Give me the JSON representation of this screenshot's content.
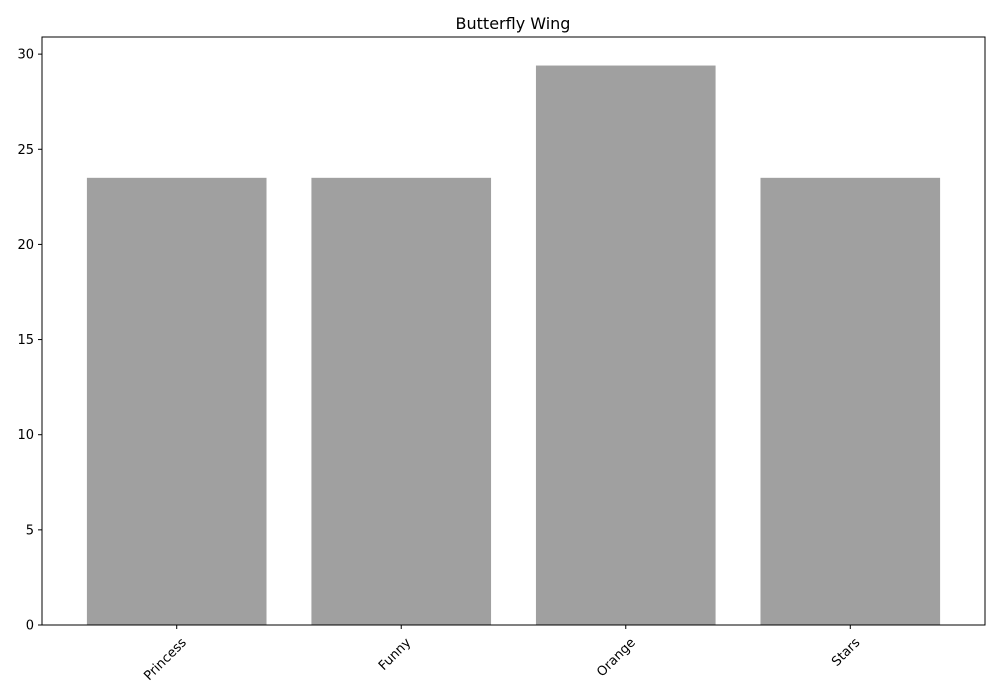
{
  "chart_data": {
    "type": "bar",
    "title": "Butterfly Wing",
    "xlabel": "",
    "ylabel": "",
    "categories": [
      "Princess",
      "Funny",
      "Orange",
      "Stars"
    ],
    "values": [
      23.5,
      23.5,
      29.4,
      23.5
    ],
    "ylim": [
      0,
      30.9
    ],
    "yticks": [
      0,
      5,
      10,
      15,
      20,
      25,
      30
    ],
    "bar_color": "#a0a0a0",
    "grid": false,
    "legend": "none",
    "xtick_rotation": 45
  }
}
